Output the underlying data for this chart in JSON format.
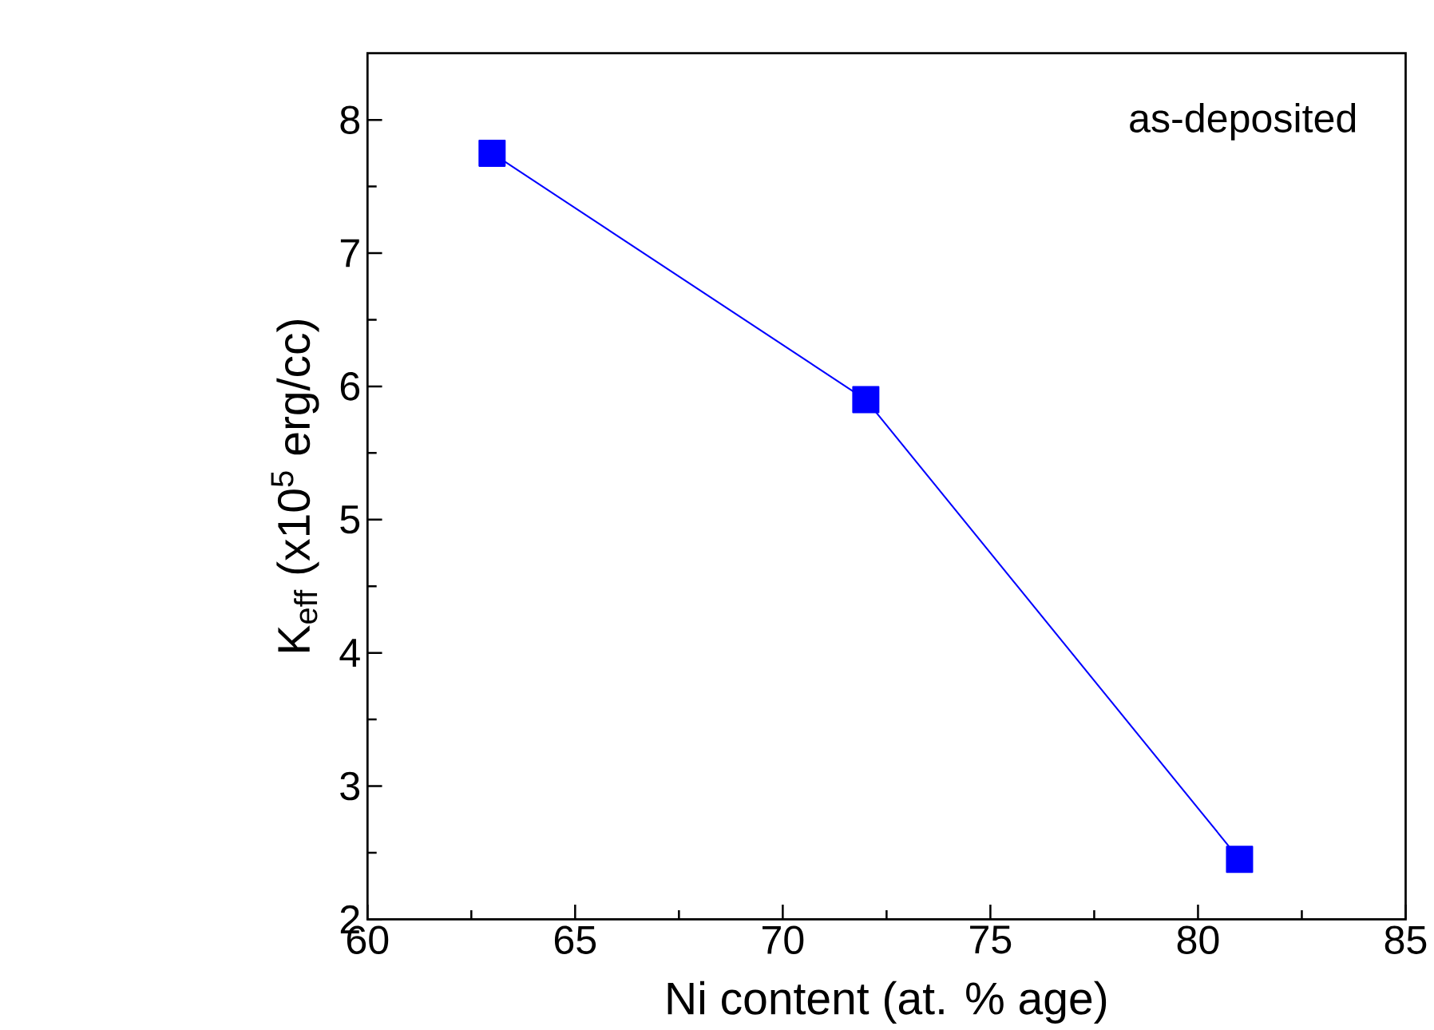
{
  "chart_data": {
    "type": "line",
    "xlabel": "Ni content (at. % age)",
    "ylabel": "K$_{eff}$ (x10$^{5}$ erg/cc)",
    "x": [
      63,
      72,
      81
    ],
    "series": [
      {
        "color": "#0000ff",
        "values": [
          7.75,
          5.9,
          2.45
        ]
      }
    ],
    "marker": "square",
    "line_style": "solid",
    "xlim": [
      60,
      85
    ],
    "xticks": [
      60,
      65,
      70,
      75,
      80,
      85
    ],
    "ylim": [
      2,
      8.5
    ],
    "yticks": [
      2,
      3,
      4,
      5,
      6,
      7,
      8
    ],
    "annotations": [
      "as-deposited"
    ]
  }
}
